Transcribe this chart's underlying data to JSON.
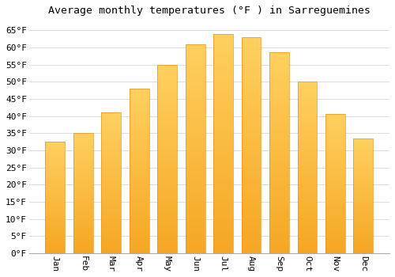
{
  "title": "Average monthly temperatures (°F ) in Sarreguemines",
  "months": [
    "Jan",
    "Feb",
    "Mar",
    "Apr",
    "May",
    "Jun",
    "Jul",
    "Aug",
    "Sep",
    "Oct",
    "Nov",
    "Dec"
  ],
  "values": [
    32.5,
    35.0,
    41.0,
    48.0,
    55.0,
    61.0,
    64.0,
    63.0,
    58.5,
    50.0,
    40.5,
    33.5
  ],
  "bar_color_bottom": "#F5A623",
  "bar_color_top": "#FFD080",
  "bar_edge_color": "#E8941A",
  "ylim": [
    0,
    68
  ],
  "yticks": [
    0,
    5,
    10,
    15,
    20,
    25,
    30,
    35,
    40,
    45,
    50,
    55,
    60,
    65
  ],
  "background_color": "#FFFFFF",
  "plot_bg_color": "#FFFFFF",
  "grid_color": "#DDDDDD",
  "title_fontsize": 9.5,
  "tick_fontsize": 8,
  "font_family": "monospace",
  "bar_width": 0.7
}
